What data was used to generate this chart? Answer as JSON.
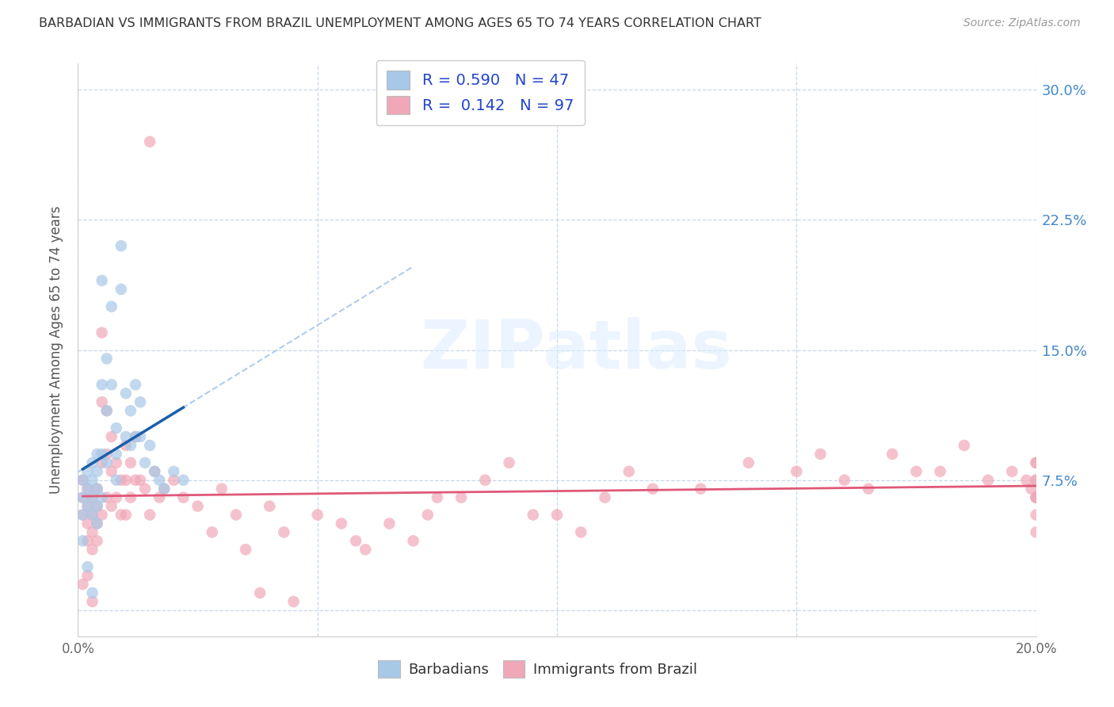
{
  "title": "BARBADIAN VS IMMIGRANTS FROM BRAZIL UNEMPLOYMENT AMONG AGES 65 TO 74 YEARS CORRELATION CHART",
  "source": "Source: ZipAtlas.com",
  "ylabel": "Unemployment Among Ages 65 to 74 years",
  "xlim": [
    0.0,
    0.2
  ],
  "ylim": [
    -0.015,
    0.315
  ],
  "xticks": [
    0.0,
    0.05,
    0.1,
    0.15,
    0.2
  ],
  "xticklabels": [
    "0.0%",
    "",
    "",
    "",
    "20.0%"
  ],
  "yticks": [
    0.0,
    0.075,
    0.15,
    0.225,
    0.3
  ],
  "yticklabels": [
    "",
    "7.5%",
    "15.0%",
    "22.5%",
    "30.0%"
  ],
  "background_color": "#ffffff",
  "grid_color": "#c8d8e8",
  "barbadian_color": "#a8c8e8",
  "brazil_color": "#f0a8b8",
  "barbadian_line_color": "#1a5faa",
  "brazil_line_color": "#e05878",
  "dash_line_color": "#b0ccee",
  "R_barbadian": "0.590",
  "N_barbadian": 47,
  "R_brazil": "0.142",
  "N_brazil": 97,
  "legend_label_barbadian": "Barbadians",
  "legend_label_brazil": "Immigrants from Brazil",
  "watermark": "ZIPatlas",
  "barbadian_x": [
    0.001,
    0.001,
    0.001,
    0.002,
    0.001,
    0.002,
    0.002,
    0.002,
    0.003,
    0.003,
    0.003,
    0.003,
    0.003,
    0.004,
    0.004,
    0.004,
    0.004,
    0.004,
    0.005,
    0.005,
    0.005,
    0.005,
    0.006,
    0.006,
    0.006,
    0.007,
    0.007,
    0.008,
    0.008,
    0.008,
    0.009,
    0.009,
    0.01,
    0.01,
    0.011,
    0.011,
    0.012,
    0.012,
    0.013,
    0.013,
    0.014,
    0.015,
    0.016,
    0.017,
    0.018,
    0.02,
    0.022
  ],
  "barbadian_y": [
    0.075,
    0.065,
    0.055,
    0.08,
    0.04,
    0.07,
    0.06,
    0.025,
    0.085,
    0.075,
    0.065,
    0.055,
    0.01,
    0.09,
    0.08,
    0.07,
    0.06,
    0.05,
    0.19,
    0.13,
    0.09,
    0.065,
    0.145,
    0.115,
    0.085,
    0.175,
    0.13,
    0.105,
    0.09,
    0.075,
    0.21,
    0.185,
    0.125,
    0.1,
    0.115,
    0.095,
    0.13,
    0.1,
    0.12,
    0.1,
    0.085,
    0.095,
    0.08,
    0.075,
    0.07,
    0.08,
    0.075
  ],
  "brazil_x": [
    0.001,
    0.001,
    0.001,
    0.001,
    0.002,
    0.002,
    0.002,
    0.002,
    0.002,
    0.003,
    0.003,
    0.003,
    0.003,
    0.003,
    0.004,
    0.004,
    0.004,
    0.004,
    0.005,
    0.005,
    0.005,
    0.005,
    0.006,
    0.006,
    0.006,
    0.007,
    0.007,
    0.007,
    0.008,
    0.008,
    0.009,
    0.009,
    0.01,
    0.01,
    0.01,
    0.011,
    0.011,
    0.012,
    0.012,
    0.013,
    0.014,
    0.015,
    0.015,
    0.016,
    0.017,
    0.018,
    0.02,
    0.022,
    0.025,
    0.028,
    0.03,
    0.033,
    0.035,
    0.038,
    0.04,
    0.043,
    0.045,
    0.05,
    0.055,
    0.058,
    0.06,
    0.065,
    0.07,
    0.073,
    0.075,
    0.08,
    0.085,
    0.09,
    0.095,
    0.1,
    0.105,
    0.11,
    0.115,
    0.12,
    0.13,
    0.14,
    0.15,
    0.155,
    0.16,
    0.165,
    0.17,
    0.175,
    0.18,
    0.185,
    0.19,
    0.195,
    0.198,
    0.199,
    0.2,
    0.2,
    0.2,
    0.2,
    0.2,
    0.2,
    0.2,
    0.2,
    0.2
  ],
  "brazil_y": [
    0.075,
    0.065,
    0.055,
    0.015,
    0.07,
    0.06,
    0.05,
    0.04,
    0.02,
    0.065,
    0.055,
    0.045,
    0.035,
    0.005,
    0.07,
    0.06,
    0.05,
    0.04,
    0.16,
    0.12,
    0.085,
    0.055,
    0.115,
    0.09,
    0.065,
    0.1,
    0.08,
    0.06,
    0.085,
    0.065,
    0.075,
    0.055,
    0.095,
    0.075,
    0.055,
    0.085,
    0.065,
    0.1,
    0.075,
    0.075,
    0.07,
    0.27,
    0.055,
    0.08,
    0.065,
    0.07,
    0.075,
    0.065,
    0.06,
    0.045,
    0.07,
    0.055,
    0.035,
    0.01,
    0.06,
    0.045,
    0.005,
    0.055,
    0.05,
    0.04,
    0.035,
    0.05,
    0.04,
    0.055,
    0.065,
    0.065,
    0.075,
    0.085,
    0.055,
    0.055,
    0.045,
    0.065,
    0.08,
    0.07,
    0.07,
    0.085,
    0.08,
    0.09,
    0.075,
    0.07,
    0.09,
    0.08,
    0.08,
    0.095,
    0.075,
    0.08,
    0.075,
    0.07,
    0.085,
    0.075,
    0.065,
    0.075,
    0.065,
    0.055,
    0.045,
    0.085,
    0.065
  ]
}
